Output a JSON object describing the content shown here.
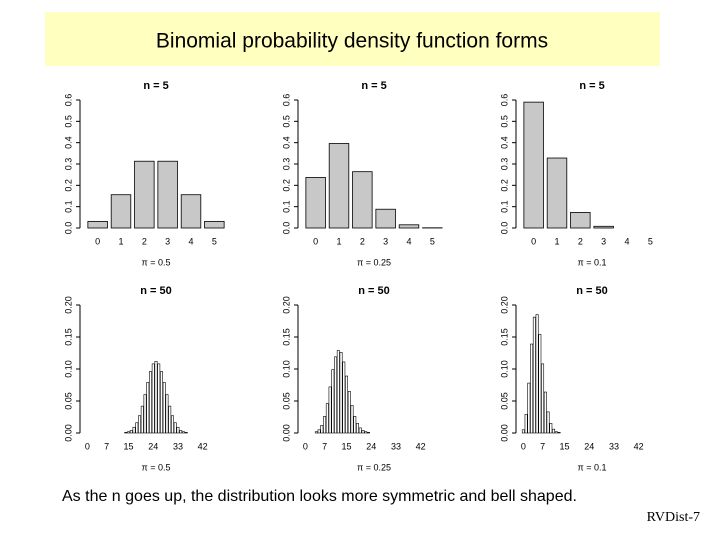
{
  "slide": {
    "title": "Binomial probability density function forms",
    "caption": "As the n goes up, the distribution looks more symmetric and bell shaped.",
    "footer": "RVDist-7"
  },
  "chart_data": [
    {
      "type": "bar",
      "title": "n = 5",
      "x_label": "π = 0.5",
      "color": "#c8c8c8",
      "categories": [
        "0",
        "1",
        "2",
        "3",
        "4",
        "5"
      ],
      "values": [
        0.031,
        0.156,
        0.313,
        0.313,
        0.156,
        0.031
      ],
      "ylim": [
        0,
        0.6
      ],
      "yticks": [
        {
          "value": 0,
          "label": "0.0"
        },
        0.1,
        0.2,
        0.3,
        0.4,
        0.5,
        0.6
      ]
    },
    {
      "type": "bar",
      "title": "n = 5",
      "x_label": "π = 0.25",
      "color": "#c8c8c8",
      "categories": [
        "0",
        "1",
        "2",
        "3",
        "4",
        "5"
      ],
      "values": [
        0.237,
        0.396,
        0.264,
        0.088,
        0.015,
        0.001
      ],
      "ylim": [
        0,
        0.6
      ],
      "yticks": [
        {
          "value": 0,
          "label": "0.0"
        },
        0.1,
        0.2,
        0.3,
        0.4,
        0.5,
        0.6
      ]
    },
    {
      "type": "bar",
      "title": "n = 5",
      "x_label": "π = 0.1",
      "color": "#c8c8c8",
      "categories": [
        "0",
        "1",
        "2",
        "3",
        "4",
        "5"
      ],
      "values": [
        0.59,
        0.328,
        0.073,
        0.008,
        0,
        0
      ],
      "ylim": [
        0,
        0.6
      ],
      "yticks": [
        {
          "value": 0,
          "label": "0.0"
        },
        0.1,
        0.2,
        0.3,
        0.4,
        0.5,
        0.6
      ]
    },
    {
      "type": "bar",
      "title": "n = 50",
      "x_label": "π = 0.5",
      "color": "#ffffff",
      "categories": [
        "0",
        null,
        null,
        null,
        null,
        null,
        null,
        "7",
        null,
        null,
        null,
        null,
        null,
        null,
        null,
        "15",
        null,
        null,
        null,
        null,
        null,
        null,
        null,
        null,
        "24",
        null,
        null,
        null,
        null,
        null,
        null,
        null,
        null,
        "33",
        null,
        null,
        null,
        null,
        null,
        null,
        null,
        null,
        "42",
        null,
        null,
        null,
        null,
        null,
        null,
        null,
        null
      ],
      "values": [
        0,
        0,
        0,
        0,
        0,
        0,
        0,
        0,
        0,
        0,
        0,
        0,
        0,
        0,
        0.001,
        0.002,
        0.004,
        0.009,
        0.016,
        0.027,
        0.042,
        0.06,
        0.079,
        0.096,
        0.108,
        0.112,
        0.108,
        0.096,
        0.079,
        0.06,
        0.042,
        0.027,
        0.016,
        0.009,
        0.004,
        0.002,
        0.001,
        0,
        0,
        0,
        0,
        0,
        0,
        0,
        0,
        0,
        0,
        0,
        0,
        0,
        0
      ],
      "ylim": [
        0,
        0.2
      ],
      "yticks": [
        {
          "value": 0,
          "label": "0.00"
        },
        {
          "value": 0.05,
          "label": "0.05"
        },
        {
          "value": 0.1,
          "label": "0.10"
        },
        {
          "value": 0.15,
          "label": "0.15"
        },
        {
          "value": 0.2,
          "label": "0.20"
        }
      ]
    },
    {
      "type": "bar",
      "title": "n = 50",
      "x_label": "π = 0.25",
      "color": "#ffffff",
      "categories": [
        "0",
        null,
        null,
        null,
        null,
        null,
        null,
        "7",
        null,
        null,
        null,
        null,
        null,
        null,
        null,
        "15",
        null,
        null,
        null,
        null,
        null,
        null,
        null,
        null,
        "24",
        null,
        null,
        null,
        null,
        null,
        null,
        null,
        null,
        "33",
        null,
        null,
        null,
        null,
        null,
        null,
        null,
        null,
        "42",
        null,
        null,
        null,
        null,
        null,
        null,
        null,
        null
      ],
      "values": [
        0,
        0,
        0,
        0,
        0.002,
        0.005,
        0.012,
        0.026,
        0.046,
        0.072,
        0.099,
        0.119,
        0.129,
        0.126,
        0.111,
        0.089,
        0.065,
        0.043,
        0.026,
        0.015,
        0.008,
        0.004,
        0.002,
        0.001,
        0,
        0,
        0,
        0,
        0,
        0,
        0,
        0,
        0,
        0,
        0,
        0,
        0,
        0,
        0,
        0,
        0,
        0,
        0,
        0,
        0,
        0,
        0,
        0,
        0,
        0,
        0
      ],
      "ylim": [
        0,
        0.2
      ],
      "yticks": [
        {
          "value": 0,
          "label": "0.00"
        },
        {
          "value": 0.05,
          "label": "0.05"
        },
        {
          "value": 0.1,
          "label": "0.10"
        },
        {
          "value": 0.15,
          "label": "0.15"
        },
        {
          "value": 0.2,
          "label": "0.20"
        }
      ]
    },
    {
      "type": "bar",
      "title": "n = 50",
      "x_label": "π = 0.1",
      "color": "#ffffff",
      "categories": [
        "0",
        null,
        null,
        null,
        null,
        null,
        null,
        "7",
        null,
        null,
        null,
        null,
        null,
        null,
        null,
        "15",
        null,
        null,
        null,
        null,
        null,
        null,
        null,
        null,
        "24",
        null,
        null,
        null,
        null,
        null,
        null,
        null,
        null,
        "33",
        null,
        null,
        null,
        null,
        null,
        null,
        null,
        null,
        "42",
        null,
        null,
        null,
        null,
        null,
        null,
        null,
        null
      ],
      "values": [
        0.005,
        0.029,
        0.078,
        0.139,
        0.181,
        0.185,
        0.154,
        0.108,
        0.064,
        0.033,
        0.015,
        0.006,
        0.002,
        0.001,
        0,
        0,
        0,
        0,
        0,
        0,
        0,
        0,
        0,
        0,
        0,
        0,
        0,
        0,
        0,
        0,
        0,
        0,
        0,
        0,
        0,
        0,
        0,
        0,
        0,
        0,
        0,
        0,
        0,
        0,
        0,
        0,
        0,
        0,
        0,
        0,
        0
      ],
      "ylim": [
        0,
        0.2
      ],
      "yticks": [
        {
          "value": 0,
          "label": "0.00"
        },
        {
          "value": 0.05,
          "label": "0.05"
        },
        {
          "value": 0.1,
          "label": "0.10"
        },
        {
          "value": 0.15,
          "label": "0.15"
        },
        {
          "value": 0.2,
          "label": "0.20"
        }
      ]
    }
  ]
}
